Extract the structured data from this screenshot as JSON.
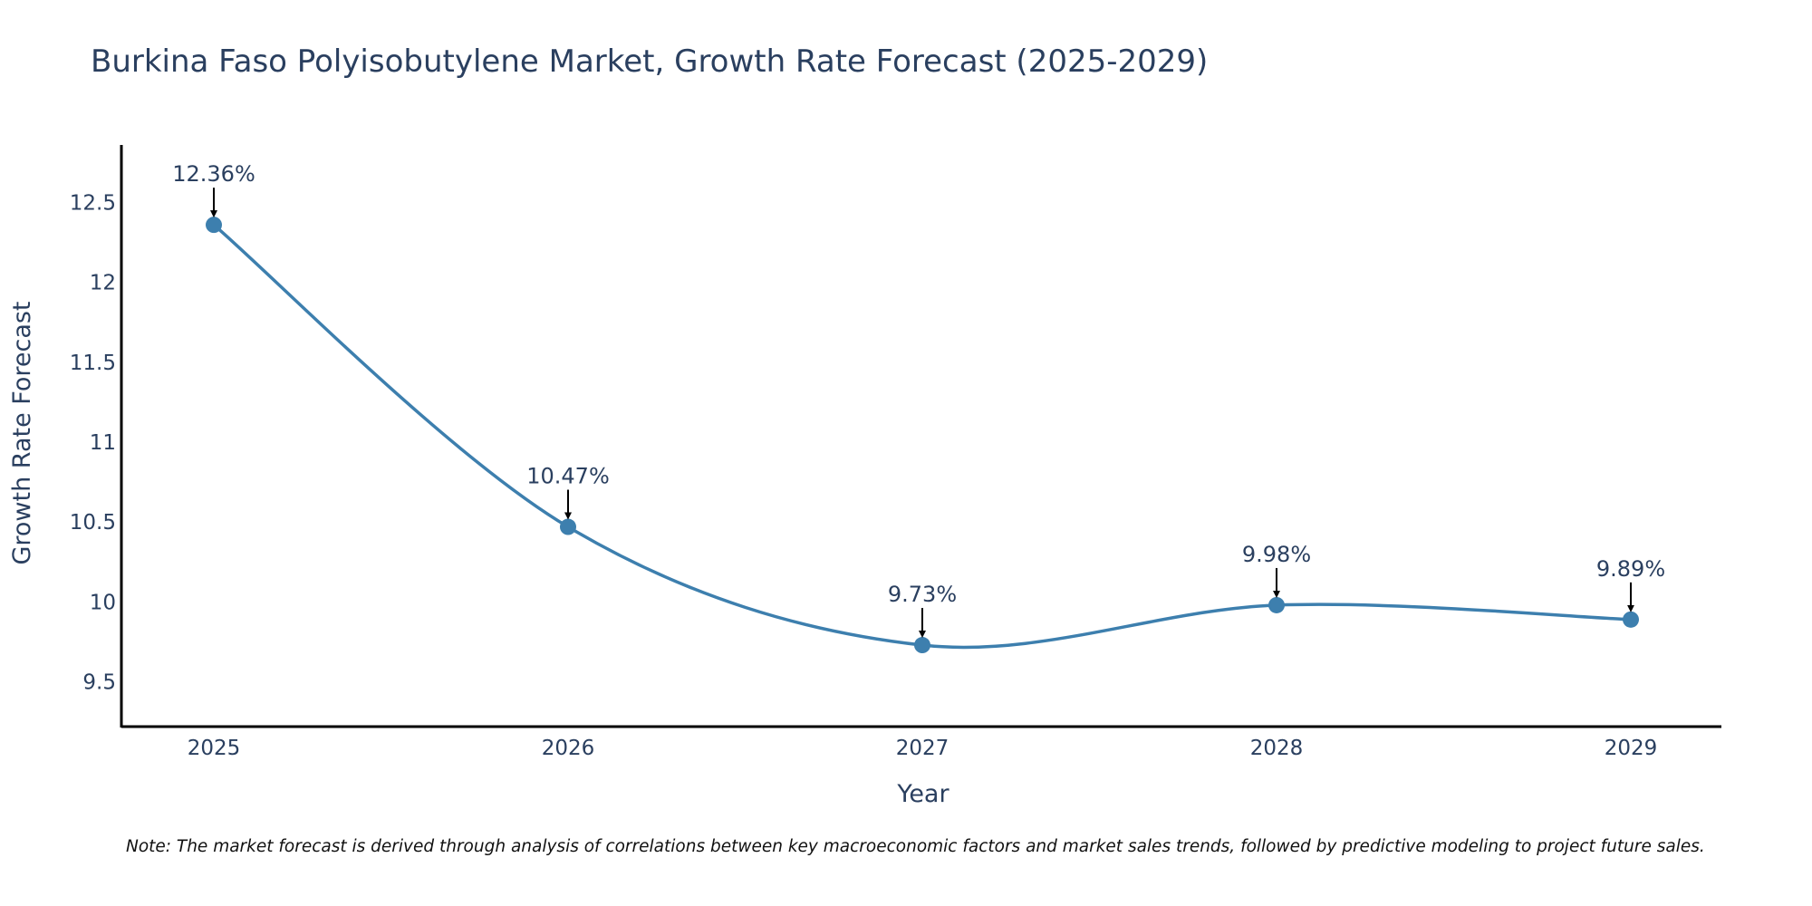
{
  "chart_data": {
    "type": "line",
    "title": "Burkina Faso Polyisobutylene Market, Growth Rate Forecast (2025-2029)",
    "xlabel": "Year",
    "ylabel": "Growth Rate Forecast",
    "categories": [
      "2025",
      "2026",
      "2027",
      "2028",
      "2029"
    ],
    "series": [
      {
        "name": "Growth Rate Forecast",
        "values": [
          12.36,
          10.47,
          9.73,
          9.98,
          9.89
        ],
        "labels": [
          "12.36%",
          "10.47%",
          "9.73%",
          "9.98%",
          "9.89%"
        ]
      }
    ],
    "y_ticks": [
      "9.5",
      "10",
      "10.5",
      "11",
      "11.5",
      "12",
      "12.5"
    ],
    "ylim": [
      9.22,
      12.86
    ],
    "grid": false,
    "legend": "none",
    "line_color": "#3d7fae",
    "annotation_color": "#000000",
    "note": "Note: The market forecast is derived through analysis of correlations between key macroeconomic factors and market sales trends, followed by predictive modeling to project future sales."
  }
}
